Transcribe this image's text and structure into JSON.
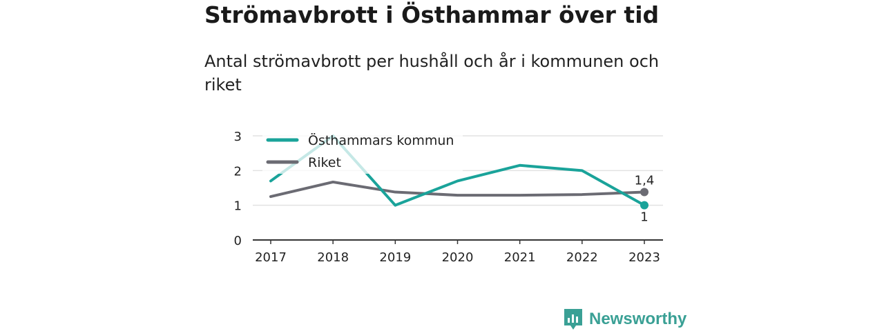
{
  "title": "Strömavbrott i Östhammar över tid",
  "subtitle": "Antal strömavbrott per hushåll och år i kommunen och riket",
  "brand": {
    "name": "Newsworthy",
    "icon": "newsworthy-logo-icon",
    "color": "#3aa095"
  },
  "chart_data": {
    "type": "line",
    "categories": [
      "2017",
      "2018",
      "2019",
      "2020",
      "2021",
      "2022",
      "2023"
    ],
    "ylim": [
      0,
      3
    ],
    "yticks": [
      "0",
      "1",
      "2",
      "3"
    ],
    "grid": true,
    "legend_position": "top-left",
    "series": [
      {
        "name": "Östhammars kommun",
        "color": "#1aa39a",
        "values": [
          1.7,
          3.0,
          1.0,
          1.7,
          2.15,
          2.0,
          1.0
        ],
        "end_label": "1"
      },
      {
        "name": "Riket",
        "color": "#6b6b73",
        "values": [
          1.25,
          1.67,
          1.38,
          1.29,
          1.29,
          1.31,
          1.38
        ],
        "end_label": "1,4"
      }
    ]
  }
}
